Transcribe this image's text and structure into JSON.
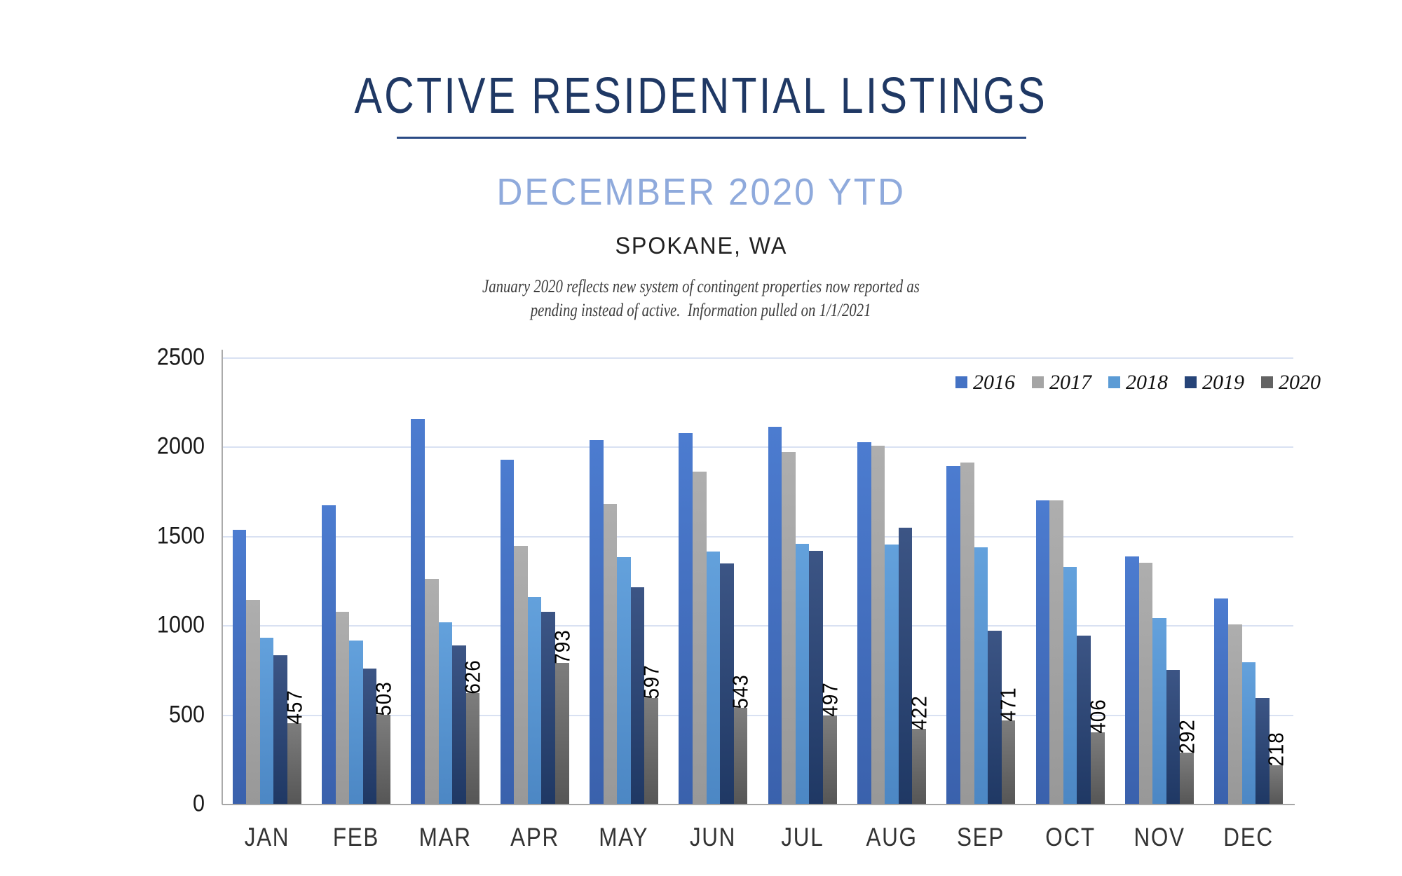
{
  "header": {
    "title": "ACTIVE RESIDENTIAL LISTINGS",
    "subtitle": "DECEMBER 2020 YTD",
    "location": "SPOKANE, WA",
    "note_line1": "January 2020 reflects new system of contingent properties now reported as",
    "note_line2": "pending instead of active.  Information pulled on 1/1/2021"
  },
  "colors": {
    "title": "#1F3864",
    "subtitle": "#8FAADC",
    "gridline": "#D9E1F2",
    "axis": "#A6A6A6"
  },
  "chart_data": {
    "type": "bar",
    "title": "ACTIVE RESIDENTIAL LISTINGS",
    "subtitle": "DECEMBER 2020 YTD",
    "region": "SPOKANE, WA",
    "categories": [
      "JAN",
      "FEB",
      "MAR",
      "APR",
      "MAY",
      "JUN",
      "JUL",
      "AUG",
      "SEP",
      "OCT",
      "NOV",
      "DEC"
    ],
    "series": [
      {
        "name": "2016",
        "color": "#4472C4",
        "color_top": "#4C7CD0",
        "color_bottom": "#3A61AC",
        "show_labels": false,
        "values": [
          1540,
          1675,
          2160,
          1930,
          2040,
          2080,
          2115,
          2030,
          1895,
          1705,
          1390,
          1155
        ]
      },
      {
        "name": "2017",
        "color": "#A5A5A5",
        "color_top": "#AEAEAE",
        "color_bottom": "#989898",
        "show_labels": false,
        "values": [
          1145,
          1080,
          1265,
          1450,
          1685,
          1865,
          1975,
          2010,
          1915,
          1705,
          1355,
          1010
        ]
      },
      {
        "name": "2018",
        "color": "#5B9BD5",
        "color_top": "#63A1DC",
        "color_bottom": "#4C87C4",
        "show_labels": false,
        "values": [
          935,
          920,
          1020,
          1160,
          1385,
          1415,
          1460,
          1455,
          1440,
          1330,
          1045,
          795
        ]
      },
      {
        "name": "2019",
        "color": "#264478",
        "color_top": "#3C5585",
        "color_bottom": "#1F3864",
        "show_labels": false,
        "values": [
          835,
          760,
          890,
          1080,
          1215,
          1350,
          1420,
          1550,
          975,
          945,
          755,
          595
        ]
      },
      {
        "name": "2020",
        "color": "#636363",
        "color_top": "#7D7D7D",
        "color_bottom": "#565656",
        "show_labels": true,
        "values": [
          457,
          503,
          626,
          793,
          597,
          543,
          497,
          422,
          471,
          406,
          292,
          218
        ],
        "labels": [
          "457",
          "503",
          "626",
          "793",
          "597",
          "543",
          "497",
          "422",
          "471",
          "406",
          "292",
          "218"
        ]
      }
    ],
    "xlabel": "",
    "ylabel": "",
    "ylim": [
      0,
      2500
    ],
    "yticks": [
      0,
      500,
      1000,
      1500,
      2000,
      2500
    ],
    "grid": true,
    "legend_position": "top-right",
    "legend_entries": [
      "2016",
      "2017",
      "2018",
      "2019",
      "2020"
    ]
  }
}
